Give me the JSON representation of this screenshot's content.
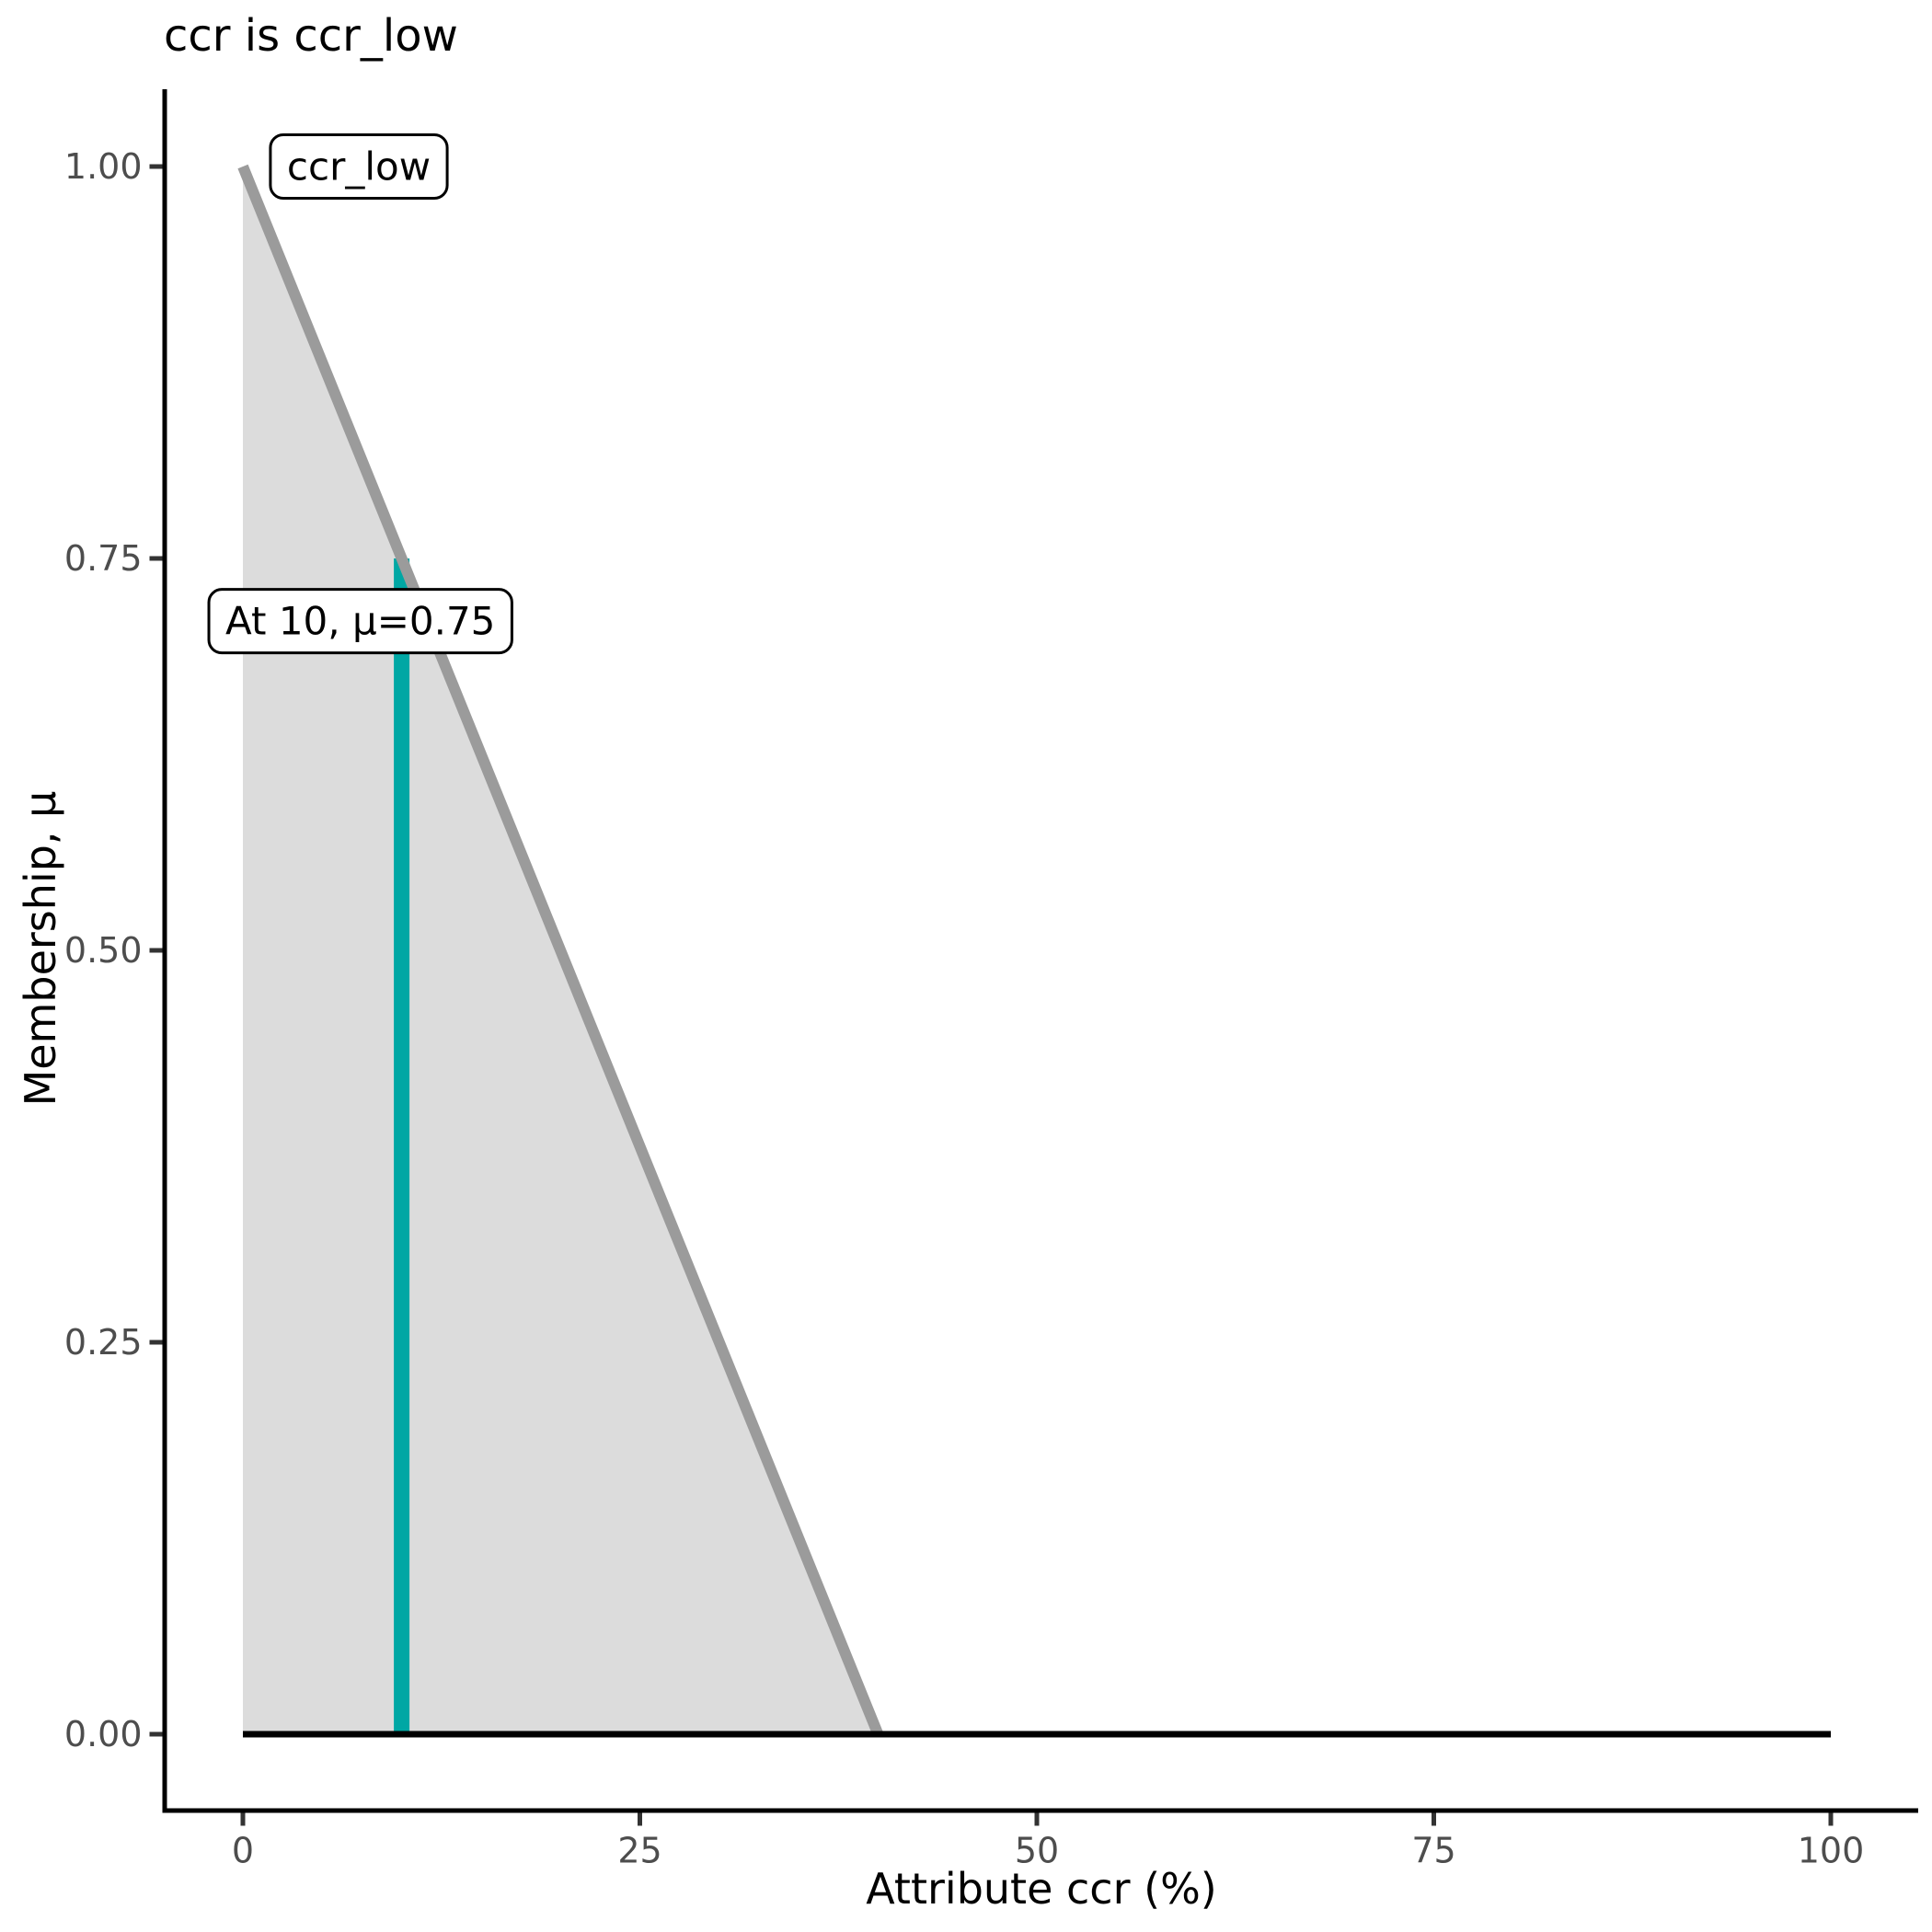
{
  "title": "ccr is ccr_low",
  "chart_data": {
    "type": "area",
    "title": "ccr is ccr_low",
    "xlabel": "Attribute ccr (%)",
    "ylabel": "Membership, μ",
    "xlim": [
      0,
      100
    ],
    "ylim": [
      0,
      1
    ],
    "grid": false,
    "legend": "none",
    "x_ticks": [
      {
        "value": 0,
        "label": "0"
      },
      {
        "value": 25,
        "label": "25"
      },
      {
        "value": 50,
        "label": "50"
      },
      {
        "value": 75,
        "label": "75"
      },
      {
        "value": 100,
        "label": "100"
      }
    ],
    "y_ticks": [
      {
        "value": 0,
        "label": "0.00"
      },
      {
        "value": 0.25,
        "label": "0.25"
      },
      {
        "value": 0.5,
        "label": "0.50"
      },
      {
        "value": 0.75,
        "label": "0.75"
      },
      {
        "value": 1,
        "label": "1.00"
      }
    ],
    "series": [
      {
        "name": "ccr_low",
        "role": "membership-function",
        "x": [
          0,
          40
        ],
        "mu": [
          1,
          0
        ],
        "line_color": "#9B9B9B",
        "fill_color": "#DCDCDC"
      },
      {
        "name": "zero-baseline",
        "role": "baseline",
        "x": [
          0,
          100
        ],
        "mu": [
          0,
          0
        ],
        "line_color": "#000000"
      }
    ],
    "marker": {
      "name": "crisp-input",
      "x": 10,
      "mu": 0.75,
      "color": "#00A7A4"
    },
    "annotations": [
      {
        "text": "ccr_low",
        "x": 7.3,
        "mu": 1.0
      },
      {
        "text": "At 10, μ=0.75",
        "x": 7.4,
        "mu": 0.71
      }
    ],
    "colors": {
      "axis_line": "#000000",
      "tick_mark": "#333333",
      "tick_label": "#4D4D4D",
      "annotation_border": "#000000",
      "annotation_fill": "#ffffff"
    }
  }
}
